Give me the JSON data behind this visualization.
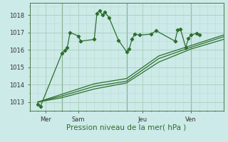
{
  "xlabel": "Pression niveau de la mer( hPa )",
  "bg_color": "#cceae8",
  "grid_color_major": "#aaccbb",
  "grid_color_minor": "#bbddcc",
  "line_color": "#2d6e2d",
  "vline_color": "#4a7a4a",
  "ylim": [
    1012.5,
    1018.7
  ],
  "yticks": [
    1013,
    1014,
    1015,
    1016,
    1017,
    1018
  ],
  "xlim": [
    0,
    72
  ],
  "xtick_positions": [
    6,
    18,
    42,
    60
  ],
  "xtick_labels": [
    "Mer",
    "Sam",
    "Jeu",
    "Ven"
  ],
  "vline_positions": [
    12,
    36,
    60
  ],
  "series1_x": [
    3,
    4,
    12,
    13,
    14,
    15,
    18,
    19,
    24,
    25,
    26,
    27,
    28,
    29.5,
    33,
    36,
    37,
    38,
    39,
    41,
    45,
    47,
    54,
    55,
    56,
    58,
    59,
    60,
    62,
    63
  ],
  "series1_y": [
    1012.85,
    1012.75,
    1015.8,
    1015.95,
    1016.15,
    1017.0,
    1016.8,
    1016.5,
    1016.6,
    1018.1,
    1018.25,
    1018.0,
    1018.15,
    1017.85,
    1016.55,
    1015.9,
    1016.05,
    1016.6,
    1016.9,
    1016.85,
    1016.9,
    1017.1,
    1016.5,
    1017.15,
    1017.2,
    1016.15,
    1016.65,
    1016.85,
    1016.95,
    1016.85
  ],
  "series2_x": [
    3,
    12,
    24,
    36,
    48,
    60,
    72
  ],
  "series2_y": [
    1013.0,
    1013.25,
    1013.75,
    1014.1,
    1015.3,
    1016.05,
    1016.6
  ],
  "series3_x": [
    3,
    12,
    24,
    36,
    48,
    60,
    72
  ],
  "series3_y": [
    1013.0,
    1013.35,
    1013.9,
    1014.2,
    1015.5,
    1016.15,
    1016.75
  ],
  "series4_x": [
    3,
    12,
    24,
    36,
    48,
    60,
    72
  ],
  "series4_y": [
    1013.0,
    1013.45,
    1014.05,
    1014.35,
    1015.65,
    1016.25,
    1016.85
  ]
}
